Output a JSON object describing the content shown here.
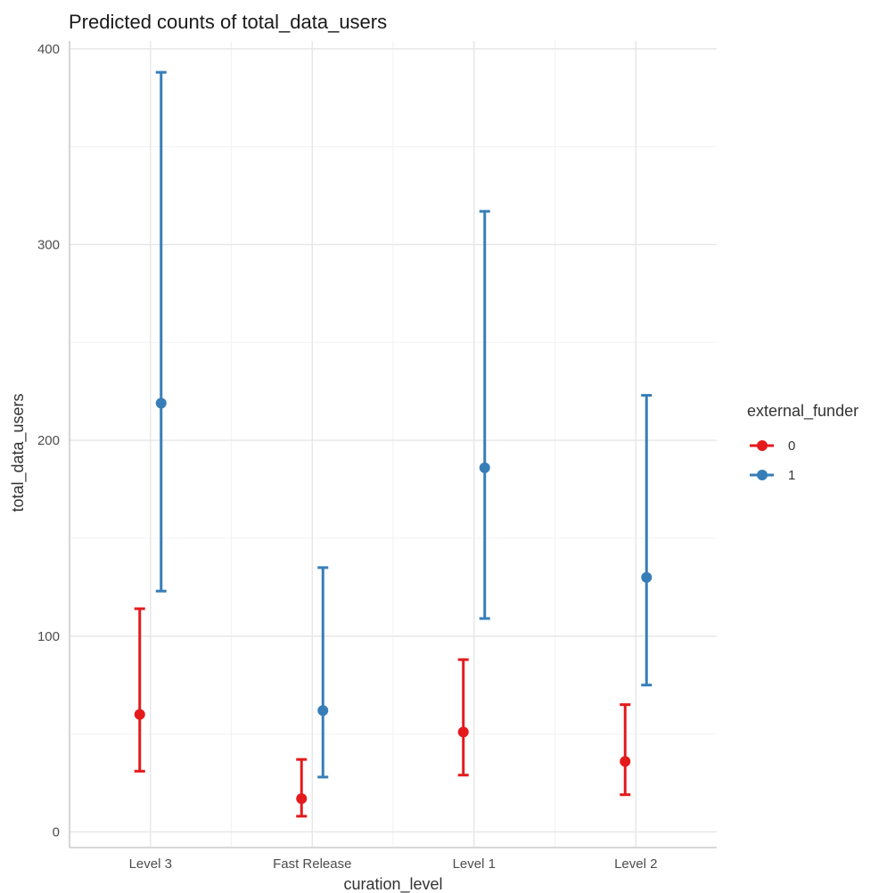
{
  "chart_data": {
    "type": "errorbar",
    "title": "Predicted counts of total_data_users",
    "xlabel": "curation_level",
    "ylabel": "total_data_users",
    "categories": [
      "Level 3",
      "Fast Release",
      "Level 1",
      "Level 2"
    ],
    "ylim": [
      -8,
      404
    ],
    "yticks": [
      0,
      100,
      200,
      300,
      400
    ],
    "grid": true,
    "legend": {
      "title": "external_funder",
      "position": "right"
    },
    "series": [
      {
        "name": "0",
        "color": "#e41a1c",
        "values": [
          60,
          17,
          51,
          36
        ],
        "lower": [
          31,
          8,
          29,
          19
        ],
        "upper": [
          114,
          37,
          88,
          65
        ]
      },
      {
        "name": "1",
        "color": "#377eb8",
        "values": [
          219,
          62,
          186,
          130
        ],
        "lower": [
          123,
          28,
          109,
          75
        ],
        "upper": [
          388,
          135,
          317,
          223
        ]
      }
    ]
  }
}
